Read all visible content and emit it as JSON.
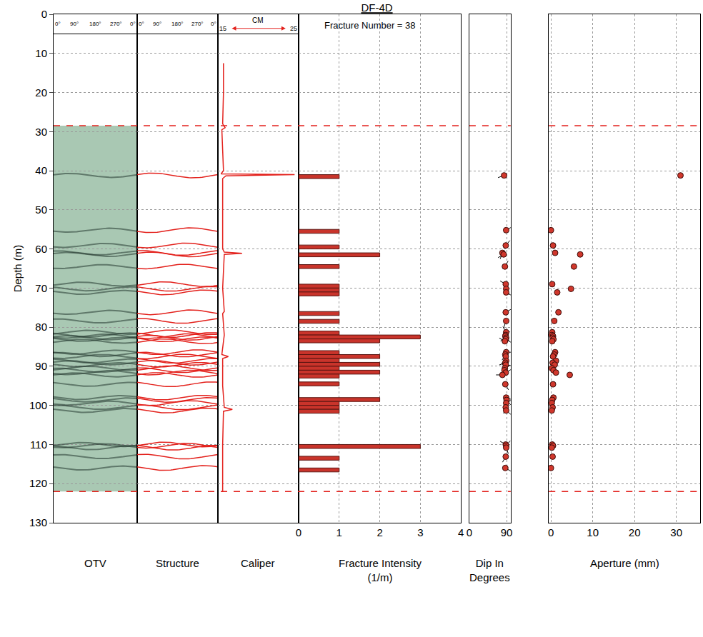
{
  "chart_data": {
    "type": "well_log",
    "title": "DF-4D",
    "ylabel": "Depth (m)",
    "ylim": [
      0,
      130
    ],
    "yticks": [
      0,
      10,
      20,
      30,
      40,
      50,
      60,
      70,
      80,
      90,
      100,
      110,
      120,
      130
    ],
    "grid": true,
    "logged_interval": [
      28.5,
      122
    ],
    "fracture_depths": [
      41.2,
      55.2,
      59.1,
      61.0,
      61.4,
      64.5,
      69.0,
      70.2,
      71.1,
      76.2,
      78.4,
      81.3,
      82.0,
      82.3,
      82.7,
      83.1,
      83.6,
      86.4,
      87.0,
      87.5,
      88.6,
      89.1,
      89.6,
      90.5,
      91.0,
      91.6,
      92.2,
      94.6,
      98.0,
      98.6,
      99.4,
      100.5,
      101.3,
      110.0,
      110.3,
      110.8,
      113.1,
      116.0
    ],
    "dip_azimuth": [
      250,
      60,
      40,
      200,
      240,
      30,
      300,
      150,
      120,
      60,
      200,
      330,
      150,
      45,
      240,
      120,
      300,
      90,
      210,
      30,
      160,
      250,
      100,
      330,
      200,
      60,
      270,
      150,
      110,
      140,
      60,
      200,
      130,
      300,
      40,
      160,
      210,
      120
    ],
    "panels": [
      {
        "type": "image",
        "title": [
          "OTV"
        ],
        "xlim": [
          0,
          360
        ],
        "xticks": [
          {
            "value": 0,
            "label": "0°"
          },
          {
            "value": 90,
            "label": "90°"
          },
          {
            "value": 180,
            "label": "180°"
          },
          {
            "value": 270,
            "label": "270°"
          },
          {
            "value": 360,
            "label": "0°"
          }
        ],
        "color": "#a9c8b3"
      },
      {
        "type": "sinusoid",
        "title": [
          "Structure"
        ],
        "xlim": [
          0,
          360
        ],
        "xticks": [
          {
            "value": 0,
            "label": "0°"
          },
          {
            "value": 90,
            "label": "90°"
          },
          {
            "value": 180,
            "label": "180°"
          },
          {
            "value": 270,
            "label": "270°"
          },
          {
            "value": 360,
            "label": "0°"
          }
        ],
        "color": "#e3211c"
      },
      {
        "type": "line",
        "title": [
          "Caliper"
        ],
        "unit": "CM",
        "xlim": [
          15,
          25
        ],
        "xticks": [
          15,
          25
        ],
        "color": "#e3211c",
        "depth": [
          12.5,
          20,
          28,
          29,
          29.5,
          35,
          40,
          40.8,
          41,
          41.3,
          42,
          50,
          60,
          60.8,
          61.1,
          61.4,
          70,
          76,
          76.5,
          82,
          87,
          87.5,
          88,
          95,
          100.5,
          101,
          101.5,
          110,
          122
        ],
        "values": [
          15.7,
          15.7,
          15.6,
          15.9,
          15.5,
          15.6,
          15.7,
          15.4,
          24.5,
          16.0,
          15.6,
          15.6,
          15.6,
          15.8,
          18.0,
          15.8,
          15.6,
          15.8,
          15.6,
          15.8,
          15.5,
          16.3,
          15.6,
          15.6,
          15.8,
          16.8,
          15.7,
          15.6,
          15.6
        ]
      },
      {
        "type": "bar",
        "orientation": "horizontal",
        "title": [
          "Fracture Intensity",
          "(1/m)"
        ],
        "annotation": "Fracture Number = 38",
        "xlim": [
          0,
          4
        ],
        "xticks": [
          0,
          1,
          2,
          3,
          4
        ],
        "color": "#c9342b",
        "depth_from": [
          41,
          55,
          59,
          61,
          64,
          69,
          70,
          71,
          76,
          78,
          81,
          82,
          83,
          86,
          87,
          88,
          89,
          90,
          91,
          92,
          94,
          98,
          99,
          100,
          101,
          110,
          113,
          116
        ],
        "depth_to": [
          42,
          56,
          60,
          62,
          65,
          70,
          71,
          72,
          77,
          79,
          82,
          83,
          84,
          87,
          88,
          89,
          90,
          91,
          92,
          93,
          95,
          99,
          100,
          101,
          102,
          111,
          114,
          117
        ],
        "values": [
          1,
          1,
          1,
          2,
          1,
          1,
          1,
          1,
          1,
          1,
          1,
          3,
          2,
          1,
          2,
          1,
          2,
          1,
          2,
          1,
          1,
          2,
          1,
          1,
          1,
          3,
          1,
          1
        ]
      },
      {
        "type": "scatter",
        "title": [
          "Dip In",
          "Degrees"
        ],
        "xlim": [
          0,
          100
        ],
        "xticks": [
          0,
          90
        ],
        "color": "#d0372c",
        "marker": "circle",
        "values": [
          84,
          89,
          88,
          80,
          83,
          86,
          88,
          89,
          89,
          88,
          89,
          89,
          88,
          87,
          89,
          88,
          86,
          89,
          87,
          88,
          89,
          87,
          88,
          86,
          85,
          88,
          80,
          87,
          89,
          90,
          89,
          88,
          89,
          88,
          89,
          89,
          88,
          87
        ]
      },
      {
        "type": "scatter",
        "title": [
          "Aperture (mm)"
        ],
        "xlim": [
          -0.5,
          35.7
        ],
        "xticks": [
          0,
          10,
          20,
          30
        ],
        "color": "#d0372c",
        "marker": "circle",
        "values": [
          31,
          0,
          0.5,
          1.0,
          7.0,
          5.5,
          0.3,
          4.8,
          1.5,
          1.8,
          0.8,
          0.3,
          0.2,
          0.5,
          0.4,
          0.6,
          0.3,
          1.0,
          0.8,
          0.5,
          1.2,
          0.4,
          0.9,
          0.2,
          0.6,
          1.2,
          4.5,
          0.5,
          0.6,
          0.3,
          0.2,
          0.4,
          0.2,
          0.3,
          0.5,
          0.2,
          0.4,
          0
        ]
      }
    ]
  }
}
